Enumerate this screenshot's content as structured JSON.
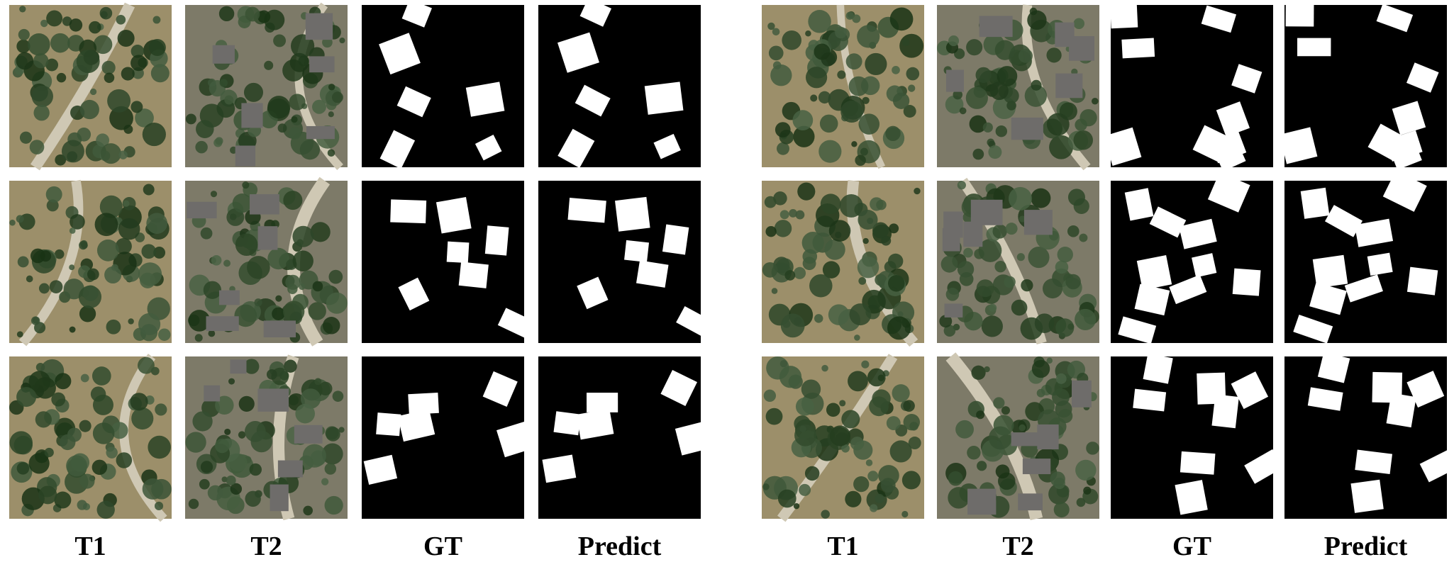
{
  "groups": [
    {
      "columns": [
        "T1",
        "T2",
        "GT",
        "Predict"
      ]
    },
    {
      "columns": [
        "T1",
        "T2",
        "GT",
        "Predict"
      ]
    }
  ]
}
